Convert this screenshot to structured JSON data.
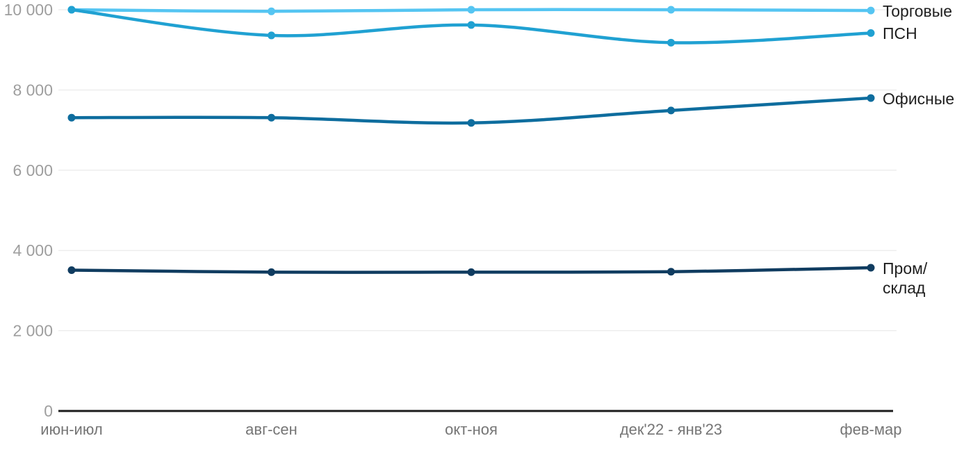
{
  "chart_data": {
    "type": "line",
    "title": "",
    "xlabel": "",
    "ylabel": "",
    "categories": [
      "июн-июл",
      "авг-сен",
      "окт-ноя",
      "дек'22 - янв'23",
      "фев-мар"
    ],
    "series": [
      {
        "name": "Торговые",
        "color": "#55c5f2",
        "values": [
          10000,
          9960,
          10000,
          10000,
          9980
        ]
      },
      {
        "name": "ПСН",
        "color": "#20a1d2",
        "values": [
          10000,
          9360,
          9620,
          9180,
          9420
        ]
      },
      {
        "name": "Офисные",
        "color": "#0e6d9e",
        "values": [
          7310,
          7310,
          7180,
          7490,
          7800
        ]
      },
      {
        "name": "Пром/склад",
        "color": "#103c60",
        "values": [
          3510,
          3460,
          3460,
          3470,
          3570
        ]
      }
    ],
    "y_axis": {
      "min": 0,
      "max": 10000,
      "tick_values": [
        0,
        2000,
        4000,
        6000,
        8000,
        10000
      ],
      "tick_labels": [
        "0",
        "2 000",
        "4 000",
        "6 000",
        "8 000",
        "10 000"
      ]
    },
    "grid": "horizontal",
    "legend_position": "right",
    "styles": {
      "background": "#ffffff",
      "grid_color": "#e6e6e6",
      "axis_color": "#1c1c1c",
      "y_label_color": "#9e9e9e",
      "x_label_color": "#757575",
      "legend_text_color": "#1f1f1f"
    }
  },
  "legend": {
    "items": [
      {
        "label": "Торговые"
      },
      {
        "label": "ПСН"
      },
      {
        "label": "Офисные"
      },
      {
        "label": "Пром/\nсклад"
      }
    ]
  }
}
